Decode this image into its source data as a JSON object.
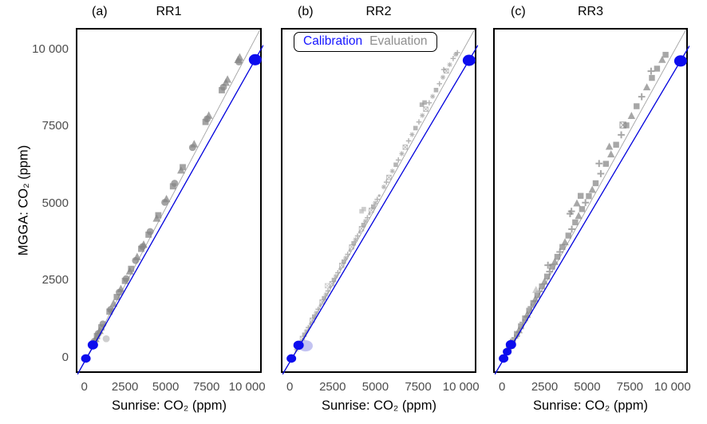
{
  "figure": {
    "y_axis_title": "MGGA: CO₂ (ppm)",
    "x_axis_title": "Sunrise: CO₂ (ppm)",
    "legend": {
      "calibration_label": "Calibration",
      "evaluation_label": "Evaluation"
    },
    "colors": {
      "calibration_blue": "#0c0cee",
      "fit_line_blue": "#0000dd",
      "identity_line_gray": "#a3a3a3",
      "legend_calibration": "#1414ff",
      "legend_evaluation": "#8f8f8f",
      "tick_label": "#4d4d4d",
      "evaluation_light": "#bdbdbd",
      "lavender": "#b9b9ef"
    }
  },
  "chart_data": [
    {
      "type": "scatter",
      "tag": "(a)",
      "title": "RR1",
      "xlabel": "Sunrise: CO₂ (ppm)",
      "ylabel": "MGGA: CO₂ (ppm)",
      "xlim": [
        -520,
        10900
      ],
      "ylim": [
        -500,
        10700
      ],
      "xticks": {
        "values": [
          0,
          2500,
          5000,
          7500,
          10000
        ],
        "labels": [
          "0",
          "2500",
          "5000",
          "7500",
          "10 000"
        ]
      },
      "yticks": {
        "values": [
          0,
          2500,
          5000,
          7500,
          10000
        ],
        "labels": [
          "0",
          "2500",
          "5000",
          "7500",
          "10 000"
        ]
      },
      "grid": false,
      "identity_line": {
        "slope": 1,
        "intercept": 0
      },
      "fit_line": {
        "slope": 0.936,
        "intercept": -10
      },
      "marker_color": "#858585",
      "marker_scale": 1.0,
      "evaluation_points": [
        [
          380,
          430,
          "c"
        ],
        [
          450,
          500,
          "s"
        ],
        [
          520,
          580,
          "c"
        ],
        [
          600,
          660,
          "t"
        ],
        [
          680,
          745,
          "s"
        ],
        [
          760,
          830,
          "c"
        ],
        [
          850,
          925,
          "t"
        ],
        [
          950,
          1030,
          "s"
        ],
        [
          1050,
          1140,
          "c"
        ],
        [
          1250,
          660,
          "c",
          "light"
        ],
        [
          1450,
          1540,
          "s"
        ],
        [
          1520,
          1610,
          "c"
        ],
        [
          1700,
          1805,
          "t"
        ],
        [
          1900,
          2015,
          "s"
        ],
        [
          2050,
          2170,
          "c"
        ],
        [
          2150,
          2280,
          "t"
        ],
        [
          2400,
          2540,
          "s"
        ],
        [
          2480,
          2610,
          "c"
        ],
        [
          2700,
          2855,
          "t"
        ],
        [
          2780,
          2930,
          "s"
        ],
        [
          3050,
          3200,
          "c"
        ],
        [
          3150,
          3320,
          "t"
        ],
        [
          3400,
          3580,
          "s"
        ],
        [
          3480,
          3650,
          "c"
        ],
        [
          3550,
          3720,
          "t"
        ],
        [
          3850,
          4040,
          "s"
        ],
        [
          3950,
          4140,
          "c"
        ],
        [
          4350,
          4570,
          "t"
        ],
        [
          4450,
          4670,
          "s"
        ],
        [
          4850,
          5090,
          "c"
        ],
        [
          4950,
          5200,
          "t"
        ],
        [
          5350,
          5610,
          "s"
        ],
        [
          5450,
          5710,
          "c"
        ],
        [
          5850,
          6130,
          "t"
        ],
        [
          5950,
          6230,
          "s"
        ],
        [
          6550,
          6870,
          "c"
        ],
        [
          6650,
          6980,
          "t"
        ],
        [
          7350,
          7700,
          "s"
        ],
        [
          7450,
          7800,
          "c"
        ],
        [
          7550,
          7910,
          "t"
        ],
        [
          8350,
          8730,
          "s"
        ],
        [
          8450,
          8830,
          "c"
        ],
        [
          8600,
          8980,
          "t"
        ],
        [
          8700,
          9080,
          "t"
        ],
        [
          9350,
          9720,
          "t"
        ],
        [
          9450,
          9800,
          "t"
        ],
        [
          9400,
          9650,
          "c"
        ]
      ],
      "calibration_points": [
        [
          0,
          20,
          6
        ],
        [
          430,
          460,
          6.5
        ],
        [
          10400,
          9720,
          8
        ]
      ]
    },
    {
      "type": "scatter",
      "tag": "(b)",
      "title": "RR2",
      "xlabel": "Sunrise: CO₂ (ppm)",
      "ylabel": "MGGA: CO₂ (ppm)",
      "xlim": [
        -520,
        10900
      ],
      "ylim": [
        -500,
        10700
      ],
      "xticks": {
        "values": [
          0,
          2500,
          5000,
          7500,
          10000
        ],
        "labels": [
          "0",
          "2500",
          "5000",
          "7500",
          "10 000"
        ]
      },
      "yticks": {
        "values": [
          0,
          2500,
          5000,
          7500,
          10000
        ],
        "labels": [
          "0",
          "2500",
          "5000",
          "7500",
          "10 000"
        ]
      },
      "grid": false,
      "identity_line": {
        "slope": 1,
        "intercept": 0
      },
      "fit_line": {
        "slope": 0.936,
        "intercept": -10
      },
      "marker_color": "#9c9c9c",
      "marker_scale": 0.72,
      "evaluation_points": [
        [
          300,
          315,
          "a"
        ],
        [
          415,
          430,
          "p"
        ],
        [
          530,
          550,
          "d"
        ],
        [
          645,
          670,
          "x"
        ],
        [
          760,
          790,
          "s"
        ],
        [
          875,
          905,
          "a"
        ],
        [
          990,
          1025,
          "p"
        ],
        [
          1105,
          1145,
          "d"
        ],
        [
          1220,
          1262,
          "x"
        ],
        [
          1335,
          1380,
          "s"
        ],
        [
          1450,
          1500,
          "a"
        ],
        [
          1565,
          1618,
          "p"
        ],
        [
          1680,
          1737,
          "d"
        ],
        [
          1795,
          1856,
          "x"
        ],
        [
          1910,
          1975,
          "s"
        ],
        [
          2025,
          2094,
          "a"
        ],
        [
          2140,
          2212,
          "p"
        ],
        [
          2255,
          2331,
          "d"
        ],
        [
          2370,
          2450,
          "x"
        ],
        [
          2485,
          2569,
          "s"
        ],
        [
          2600,
          2688,
          "a"
        ],
        [
          2715,
          2807,
          "p"
        ],
        [
          2830,
          2926,
          "d"
        ],
        [
          2945,
          3045,
          "x"
        ],
        [
          3060,
          3164,
          "s"
        ],
        [
          3175,
          3283,
          "a"
        ],
        [
          3290,
          3402,
          "p"
        ],
        [
          3405,
          3521,
          "d"
        ],
        [
          3520,
          3640,
          "x"
        ],
        [
          3635,
          3759,
          "s"
        ],
        [
          3750,
          3878,
          "a"
        ],
        [
          3865,
          3997,
          "p"
        ],
        [
          3980,
          4116,
          "d"
        ],
        [
          4095,
          4235,
          "x"
        ],
        [
          4210,
          4354,
          "s"
        ],
        [
          4325,
          4473,
          "a"
        ],
        [
          4440,
          4592,
          "p"
        ],
        [
          4555,
          4711,
          "d"
        ],
        [
          4670,
          4830,
          "x"
        ],
        [
          4785,
          4949,
          "s"
        ],
        [
          4900,
          5068,
          "a"
        ],
        [
          5015,
          5187,
          "p"
        ],
        [
          5130,
          5306,
          "d"
        ],
        [
          5400,
          5590,
          "a"
        ],
        [
          5550,
          5745,
          "p"
        ],
        [
          5700,
          5900,
          "x"
        ],
        [
          5900,
          6105,
          "a"
        ],
        [
          6100,
          6310,
          "s"
        ],
        [
          6250,
          6465,
          "p"
        ],
        [
          6450,
          6670,
          "a"
        ],
        [
          6650,
          6880,
          "x"
        ],
        [
          6850,
          7085,
          "p"
        ],
        [
          7050,
          7290,
          "a"
        ],
        [
          7250,
          7500,
          "s"
        ],
        [
          7450,
          7700,
          "p"
        ],
        [
          7650,
          7910,
          "a"
        ],
        [
          7850,
          8115,
          "x"
        ],
        [
          8050,
          8320,
          "p"
        ],
        [
          8250,
          8530,
          "a"
        ],
        [
          8450,
          8735,
          "s"
        ],
        [
          8650,
          8940,
          "p"
        ],
        [
          8850,
          9150,
          "a"
        ],
        [
          9050,
          9355,
          "x"
        ],
        [
          9250,
          9560,
          "a"
        ],
        [
          9450,
          9760,
          "p"
        ],
        [
          9600,
          9890,
          "a"
        ],
        [
          9700,
          9950,
          "p"
        ],
        [
          4100,
          4800,
          "s",
          "light"
        ],
        [
          4230,
          4870,
          "s",
          "light"
        ],
        [
          7620,
          8260,
          "s"
        ],
        [
          7780,
          8330,
          "s"
        ],
        [
          2100,
          2380,
          "x",
          "light"
        ],
        [
          8900,
          9400,
          "p"
        ]
      ],
      "calibration_points": [
        [
          0,
          20,
          6
        ],
        [
          420,
          450,
          6.5
        ],
        [
          10380,
          9700,
          8
        ]
      ],
      "extra_ellipse": {
        "x": 830,
        "y": 430,
        "rx": 9,
        "ry": 7
      }
    },
    {
      "type": "scatter",
      "tag": "(c)",
      "title": "RR3",
      "xlabel": "Sunrise: CO₂ (ppm)",
      "ylabel": "MGGA: CO₂ (ppm)",
      "xlim": [
        -520,
        10900
      ],
      "ylim": [
        -500,
        10700
      ],
      "xticks": {
        "values": [
          0,
          2500,
          5000,
          7500,
          10000
        ],
        "labels": [
          "0",
          "2500",
          "5000",
          "7500",
          "10 000"
        ]
      },
      "yticks": {
        "values": [
          0,
          2500,
          5000,
          7500,
          10000
        ],
        "labels": [
          "0",
          "2500",
          "5000",
          "7500",
          "10 000"
        ]
      },
      "grid": false,
      "identity_line": {
        "slope": 1,
        "intercept": 0
      },
      "fit_line": {
        "slope": 0.934,
        "intercept": -10
      },
      "marker_color": "#8a8a8a",
      "marker_scale": 0.95,
      "evaluation_points": [
        [
          300,
          315,
          "s"
        ],
        [
          420,
          440,
          "t"
        ],
        [
          540,
          565,
          "s"
        ],
        [
          660,
          690,
          "p"
        ],
        [
          780,
          815,
          "s"
        ],
        [
          900,
          940,
          "t"
        ],
        [
          1020,
          1065,
          "s"
        ],
        [
          1140,
          1190,
          "p"
        ],
        [
          1260,
          1320,
          "s"
        ],
        [
          1380,
          1445,
          "t"
        ],
        [
          1500,
          1570,
          "s"
        ],
        [
          1620,
          1695,
          "p"
        ],
        [
          1740,
          1820,
          "s"
        ],
        [
          1860,
          1950,
          "t"
        ],
        [
          1980,
          2075,
          "s"
        ],
        [
          2100,
          2200,
          "p"
        ],
        [
          2250,
          2360,
          "s"
        ],
        [
          2400,
          2520,
          "t"
        ],
        [
          2550,
          2680,
          "s"
        ],
        [
          2700,
          2840,
          "p"
        ],
        [
          2850,
          3000,
          "s"
        ],
        [
          3000,
          3160,
          "t"
        ],
        [
          3150,
          3320,
          "s"
        ],
        [
          3300,
          3480,
          "p"
        ],
        [
          3450,
          3640,
          "s"
        ],
        [
          3600,
          3800,
          "t"
        ],
        [
          3800,
          4010,
          "s"
        ],
        [
          4000,
          4220,
          "p"
        ],
        [
          4200,
          4440,
          "s"
        ],
        [
          4400,
          4650,
          "t"
        ],
        [
          4600,
          4870,
          "s"
        ],
        [
          4800,
          5080,
          "p"
        ],
        [
          5000,
          5290,
          "s"
        ],
        [
          5200,
          5500,
          "t"
        ],
        [
          5400,
          5710,
          "s"
        ],
        [
          5700,
          6020,
          "p"
        ],
        [
          6000,
          6340,
          "s"
        ],
        [
          6300,
          6650,
          "t"
        ],
        [
          6600,
          6960,
          "s"
        ],
        [
          6900,
          7280,
          "p"
        ],
        [
          7200,
          7590,
          "s"
        ],
        [
          7500,
          7900,
          "t"
        ],
        [
          7800,
          8210,
          "s"
        ],
        [
          8100,
          8520,
          "p"
        ],
        [
          8400,
          8830,
          "t"
        ],
        [
          8700,
          9130,
          "s"
        ],
        [
          9000,
          9430,
          "s"
        ],
        [
          9300,
          9720,
          "t"
        ],
        [
          9500,
          9880,
          "s"
        ],
        [
          3900,
          4720,
          "p"
        ],
        [
          3980,
          4800,
          "p"
        ],
        [
          4300,
          5060,
          "t"
        ],
        [
          4520,
          5300,
          "s"
        ],
        [
          2600,
          3050,
          "p"
        ],
        [
          6200,
          6900,
          "t"
        ],
        [
          8650,
          9350,
          "p"
        ],
        [
          5600,
          6350,
          "p"
        ],
        [
          1900,
          2250,
          "t",
          "light"
        ],
        [
          7000,
          7600,
          "x"
        ]
      ],
      "calibration_points": [
        [
          0,
          20,
          6
        ],
        [
          210,
          240,
          5.5
        ],
        [
          430,
          470,
          6.5
        ],
        [
          10380,
          9680,
          8
        ]
      ]
    }
  ]
}
